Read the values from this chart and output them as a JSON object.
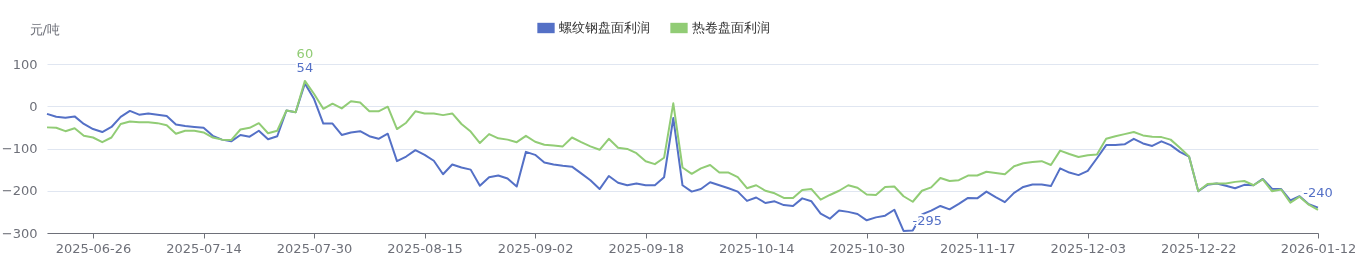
{
  "chart_data": {
    "type": "line",
    "ylabel": "元/吨",
    "categories": [
      null,
      null,
      null,
      null,
      null,
      "2025-06-26",
      null,
      null,
      null,
      null,
      null,
      null,
      null,
      null,
      null,
      null,
      null,
      "2025-07-14",
      null,
      null,
      null,
      null,
      null,
      null,
      null,
      null,
      null,
      null,
      null,
      "2025-07-30",
      null,
      null,
      null,
      null,
      null,
      null,
      null,
      null,
      null,
      null,
      null,
      "2025-08-15",
      null,
      null,
      null,
      null,
      null,
      null,
      null,
      null,
      null,
      null,
      null,
      "2025-09-02",
      null,
      null,
      null,
      null,
      null,
      null,
      null,
      null,
      null,
      null,
      null,
      "2025-09-18",
      null,
      null,
      null,
      null,
      null,
      null,
      null,
      null,
      null,
      null,
      null,
      "2025-10-14",
      null,
      null,
      null,
      null,
      null,
      null,
      null,
      null,
      null,
      null,
      null,
      "2025-10-30",
      null,
      null,
      null,
      null,
      null,
      null,
      null,
      null,
      null,
      null,
      null,
      "2025-11-17",
      null,
      null,
      null,
      null,
      null,
      null,
      null,
      null,
      null,
      null,
      null,
      "2025-12-03",
      null,
      null,
      null,
      null,
      null,
      null,
      null,
      null,
      null,
      null,
      null,
      "2025-12-22",
      null,
      null,
      null,
      null,
      null,
      null,
      null,
      null,
      null,
      null,
      null,
      null,
      "2026-01-12"
    ],
    "series": [
      {
        "name": "螺纹钢盘面利润",
        "color": "#5470c6",
        "values": [
          -18,
          -25,
          -27,
          -24,
          -42,
          -54,
          -61,
          -49,
          -25,
          -11,
          -20,
          -17,
          -20,
          -23,
          -43,
          -47,
          -49,
          -51,
          -70,
          -79,
          -83,
          -68,
          -72,
          -58,
          -78,
          -71,
          -10,
          -14,
          54,
          17,
          -41,
          -41,
          -68,
          -62,
          -59,
          -71,
          -77,
          -65,
          -130,
          -119,
          -104,
          -115,
          -129,
          -161,
          -138,
          -145,
          -150,
          -188,
          -168,
          -164,
          -171,
          -190,
          -108,
          -115,
          -133,
          -138,
          -141,
          -143,
          -159,
          -175,
          -196,
          -165,
          -181,
          -187,
          -183,
          -187,
          -187,
          -168,
          -28,
          -187,
          -202,
          -196,
          -180,
          -187,
          -194,
          -202,
          -224,
          -216,
          -229,
          -225,
          -234,
          -236,
          -218,
          -225,
          -254,
          -266,
          -247,
          -250,
          -255,
          -270,
          -263,
          -259,
          -245,
          -295,
          -294,
          -256,
          -247,
          -236,
          -244,
          -231,
          -217,
          -218,
          -202,
          -215,
          -227,
          -205,
          -191,
          -185,
          -185,
          -189,
          -147,
          -157,
          -163,
          -153,
          -123,
          -92,
          -92,
          -90,
          -77,
          -88,
          -94,
          -83,
          -92,
          -108,
          -119,
          -201,
          -186,
          -183,
          -188,
          -194,
          -186,
          -187,
          -172,
          -195,
          -196,
          -223,
          -213,
          -232,
          -240
        ],
        "value_labels": [
          null,
          null,
          null,
          null,
          null,
          null,
          null,
          null,
          null,
          null,
          null,
          null,
          null,
          null,
          null,
          null,
          null,
          null,
          null,
          null,
          null,
          null,
          null,
          null,
          null,
          null,
          null,
          null,
          "54",
          null,
          null,
          null,
          null,
          null,
          null,
          null,
          null,
          null,
          null,
          null,
          null,
          null,
          null,
          null,
          null,
          null,
          null,
          null,
          null,
          null,
          null,
          null,
          null,
          null,
          null,
          null,
          null,
          null,
          null,
          null,
          null,
          null,
          null,
          null,
          null,
          null,
          null,
          null,
          null,
          null,
          null,
          null,
          null,
          null,
          null,
          null,
          null,
          null,
          null,
          null,
          null,
          null,
          null,
          null,
          null,
          null,
          null,
          null,
          null,
          null,
          null,
          null,
          null,
          "-295",
          null,
          null,
          null,
          null,
          null,
          null,
          null,
          null,
          null,
          null,
          null,
          null,
          null,
          null,
          null,
          null,
          null,
          null,
          null,
          null,
          null,
          null,
          null,
          null,
          null,
          null,
          null,
          null,
          null,
          null,
          null,
          null,
          null,
          null,
          null,
          null,
          null,
          null,
          null,
          null,
          null,
          null,
          null,
          null,
          "-240"
        ]
      },
      {
        "name": "热卷盘面利润",
        "color": "#91cc75",
        "values": [
          -50,
          -51,
          -59,
          -52,
          -70,
          -74,
          -85,
          -74,
          -42,
          -36,
          -38,
          -38,
          -40,
          -45,
          -65,
          -58,
          -58,
          -62,
          -74,
          -79,
          -80,
          -55,
          -51,
          -40,
          -64,
          -58,
          -10,
          -14,
          60,
          29,
          -6,
          6,
          -5,
          12,
          9,
          -12,
          -12,
          -1,
          -54,
          -39,
          -12,
          -17,
          -17,
          -21,
          -17,
          -42,
          -60,
          -87,
          -66,
          -76,
          -79,
          -85,
          -70,
          -84,
          -91,
          -93,
          -95,
          -74,
          -85,
          -95,
          -103,
          -77,
          -98,
          -101,
          -111,
          -130,
          -137,
          -122,
          7,
          -145,
          -160,
          -147,
          -139,
          -157,
          -157,
          -168,
          -194,
          -187,
          -200,
          -206,
          -217,
          -217,
          -198,
          -196,
          -221,
          -210,
          -200,
          -187,
          -193,
          -209,
          -210,
          -191,
          -190,
          -213,
          -226,
          -200,
          -192,
          -170,
          -177,
          -175,
          -164,
          -164,
          -155,
          -158,
          -161,
          -142,
          -135,
          -132,
          -130,
          -139,
          -105,
          -113,
          -120,
          -116,
          -114,
          -77,
          -71,
          -66,
          -61,
          -69,
          -72,
          -73,
          -79,
          -98,
          -119,
          -201,
          -184,
          -183,
          -183,
          -179,
          -177,
          -187,
          -173,
          -201,
          -197,
          -228,
          -214,
          -233,
          -245
        ],
        "value_labels": [
          null,
          null,
          null,
          null,
          null,
          null,
          null,
          null,
          null,
          null,
          null,
          null,
          null,
          null,
          null,
          null,
          null,
          null,
          null,
          null,
          null,
          null,
          null,
          null,
          null,
          null,
          null,
          null,
          "60",
          null,
          null,
          null,
          null,
          null,
          null,
          null,
          null,
          null,
          null,
          null,
          null,
          null,
          null,
          null,
          null,
          null,
          null,
          null,
          null,
          null,
          null,
          null,
          null,
          null,
          null,
          null,
          null,
          null,
          null,
          null,
          null,
          null,
          null,
          null,
          null,
          null,
          null,
          null,
          null,
          null,
          null,
          null,
          null,
          null,
          null,
          null,
          null,
          null,
          null,
          null,
          null,
          null,
          null,
          null,
          null,
          null,
          null,
          null,
          null,
          null,
          null,
          null,
          null,
          null,
          null,
          null,
          null,
          null,
          null,
          null,
          null,
          null,
          null,
          null,
          null,
          null,
          null,
          null,
          null,
          null,
          null,
          null,
          null,
          null,
          null,
          null,
          null,
          null,
          null,
          null,
          null,
          null,
          null,
          null,
          null,
          null,
          null,
          null,
          null,
          null,
          null,
          null,
          null,
          null,
          null,
          null,
          null,
          null,
          null
        ]
      }
    ],
    "ylim": [
      -300,
      100
    ],
    "yticks": [
      -300,
      -200,
      -100,
      0,
      100
    ],
    "grid": "y",
    "legend": "top",
    "marker": "none",
    "line_style": "solid"
  }
}
